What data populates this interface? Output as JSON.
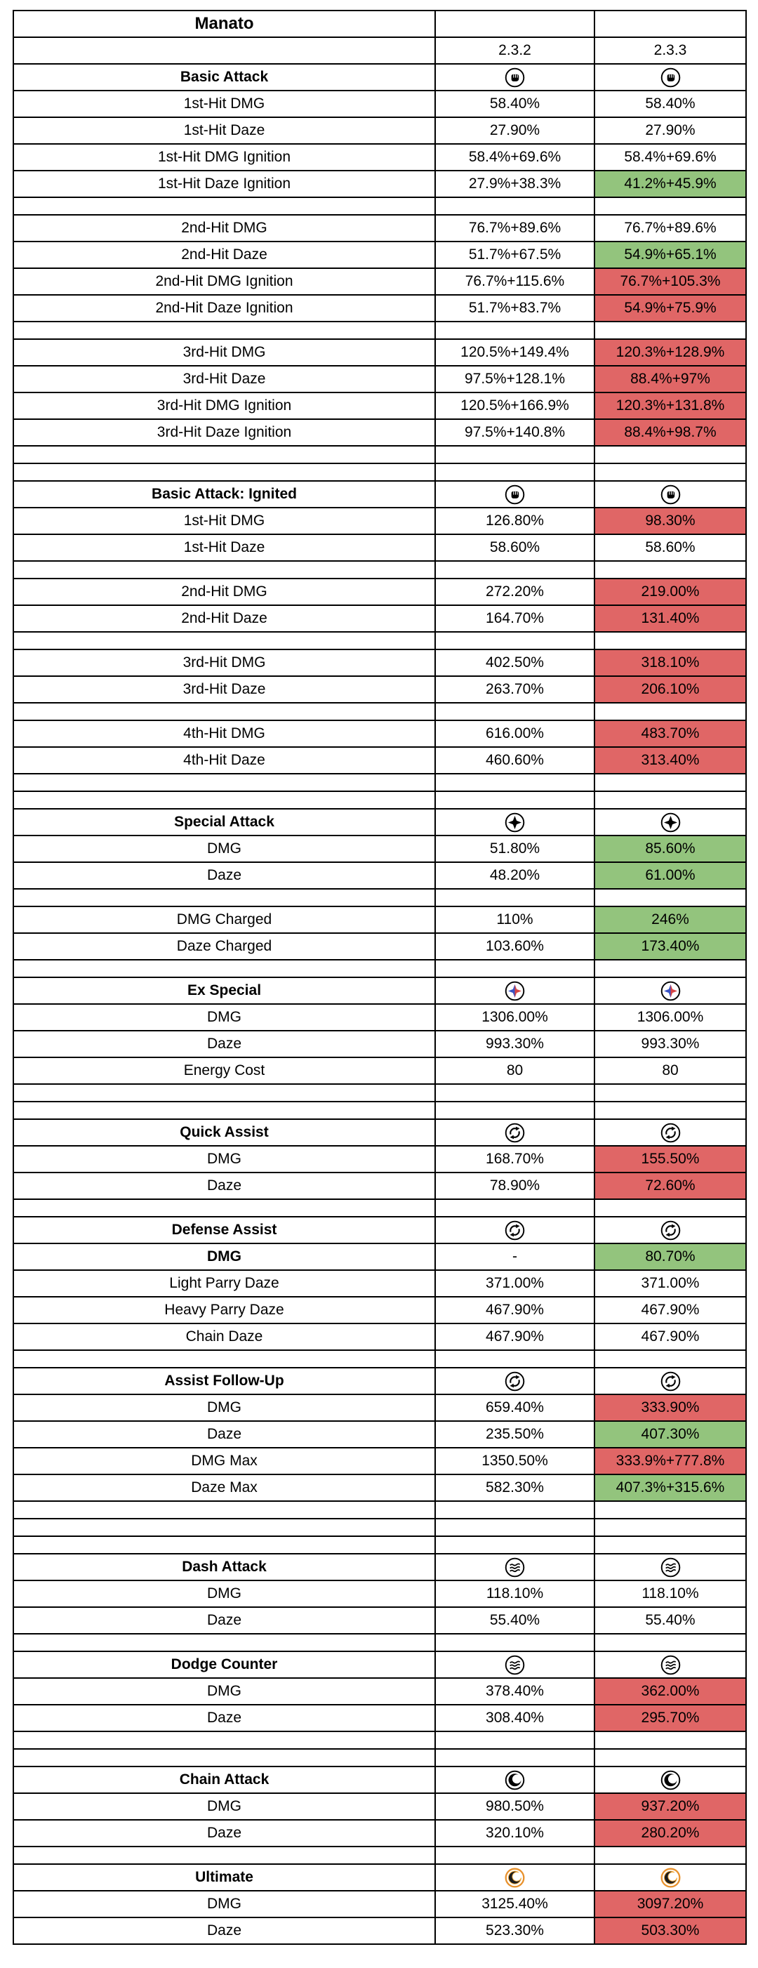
{
  "chart_data": {
    "type": "table",
    "title": "Manato",
    "columns": [
      "",
      "2.3.2",
      "2.3.3"
    ],
    "highlight_colors": {
      "buff": "#93c47d",
      "nerf": "#e06666"
    },
    "rows": [
      {
        "type": "title",
        "label": "Manato"
      },
      {
        "type": "versions",
        "old": "2.3.2",
        "new": "2.3.3"
      },
      {
        "type": "section",
        "label": "Basic Attack",
        "icon": "basic-attack-icon"
      },
      {
        "type": "stat",
        "label": "1st-Hit DMG",
        "old": "58.40%",
        "new": "58.40%",
        "change": "none"
      },
      {
        "type": "stat",
        "label": "1st-Hit Daze",
        "old": "27.90%",
        "new": "27.90%",
        "change": "none"
      },
      {
        "type": "stat",
        "label": "1st-Hit DMG Ignition",
        "old": "58.4%+69.6%",
        "new": "58.4%+69.6%",
        "change": "none"
      },
      {
        "type": "stat",
        "label": "1st-Hit Daze Ignition",
        "old": "27.9%+38.3%",
        "new": "41.2%+45.9%",
        "change": "buff"
      },
      {
        "type": "spacer"
      },
      {
        "type": "stat",
        "label": "2nd-Hit DMG",
        "old": "76.7%+89.6%",
        "new": "76.7%+89.6%",
        "change": "none"
      },
      {
        "type": "stat",
        "label": "2nd-Hit Daze",
        "old": "51.7%+67.5%",
        "new": "54.9%+65.1%",
        "change": "buff"
      },
      {
        "type": "stat",
        "label": "2nd-Hit DMG Ignition",
        "old": "76.7%+115.6%",
        "new": "76.7%+105.3%",
        "change": "nerf"
      },
      {
        "type": "stat",
        "label": "2nd-Hit Daze Ignition",
        "old": "51.7%+83.7%",
        "new": "54.9%+75.9%",
        "change": "nerf"
      },
      {
        "type": "spacer"
      },
      {
        "type": "stat",
        "label": "3rd-Hit DMG",
        "old": "120.5%+149.4%",
        "new": "120.3%+128.9%",
        "change": "nerf"
      },
      {
        "type": "stat",
        "label": "3rd-Hit Daze",
        "old": "97.5%+128.1%",
        "new": "88.4%+97%",
        "change": "nerf"
      },
      {
        "type": "stat",
        "label": "3rd-Hit DMG Ignition",
        "old": "120.5%+166.9%",
        "new": "120.3%+131.8%",
        "change": "nerf"
      },
      {
        "type": "stat",
        "label": "3rd-Hit Daze Ignition",
        "old": "97.5%+140.8%",
        "new": "88.4%+98.7%",
        "change": "nerf"
      },
      {
        "type": "spacer"
      },
      {
        "type": "spacer"
      },
      {
        "type": "section",
        "label": "Basic Attack: Ignited",
        "icon": "basic-attack-icon"
      },
      {
        "type": "stat",
        "label": "1st-Hit DMG",
        "old": "126.80%",
        "new": "98.30%",
        "change": "nerf"
      },
      {
        "type": "stat",
        "label": "1st-Hit Daze",
        "old": "58.60%",
        "new": "58.60%",
        "change": "none"
      },
      {
        "type": "spacer"
      },
      {
        "type": "stat",
        "label": "2nd-Hit DMG",
        "old": "272.20%",
        "new": "219.00%",
        "change": "nerf"
      },
      {
        "type": "stat",
        "label": "2nd-Hit Daze",
        "old": "164.70%",
        "new": "131.40%",
        "change": "nerf"
      },
      {
        "type": "spacer"
      },
      {
        "type": "stat",
        "label": "3rd-Hit DMG",
        "old": "402.50%",
        "new": "318.10%",
        "change": "nerf"
      },
      {
        "type": "stat",
        "label": "3rd-Hit Daze",
        "old": "263.70%",
        "new": "206.10%",
        "change": "nerf"
      },
      {
        "type": "spacer"
      },
      {
        "type": "stat",
        "label": "4th-Hit DMG",
        "old": "616.00%",
        "new": "483.70%",
        "change": "nerf"
      },
      {
        "type": "stat",
        "label": "4th-Hit Daze",
        "old": "460.60%",
        "new": "313.40%",
        "change": "nerf"
      },
      {
        "type": "spacer"
      },
      {
        "type": "spacer"
      },
      {
        "type": "section",
        "label": "Special Attack",
        "icon": "special-attack-icon"
      },
      {
        "type": "stat",
        "label": "DMG",
        "old": "51.80%",
        "new": "85.60%",
        "change": "buff"
      },
      {
        "type": "stat",
        "label": "Daze",
        "old": "48.20%",
        "new": "61.00%",
        "change": "buff"
      },
      {
        "type": "spacer"
      },
      {
        "type": "stat",
        "label": "DMG Charged",
        "old": "110%",
        "new": "246%",
        "change": "buff"
      },
      {
        "type": "stat",
        "label": "Daze Charged",
        "old": "103.60%",
        "new": "173.40%",
        "change": "buff"
      },
      {
        "type": "spacer"
      },
      {
        "type": "section",
        "label": "Ex Special",
        "icon": "ex-special-icon"
      },
      {
        "type": "stat",
        "label": "DMG",
        "old": "1306.00%",
        "new": "1306.00%",
        "change": "none"
      },
      {
        "type": "stat",
        "label": "Daze",
        "old": "993.30%",
        "new": "993.30%",
        "change": "none"
      },
      {
        "type": "stat",
        "label": "Energy Cost",
        "old": "80",
        "new": "80",
        "change": "none"
      },
      {
        "type": "spacer"
      },
      {
        "type": "spacer"
      },
      {
        "type": "section",
        "label": "Quick Assist",
        "icon": "quick-assist-icon"
      },
      {
        "type": "stat",
        "label": "DMG",
        "old": "168.70%",
        "new": "155.50%",
        "change": "nerf"
      },
      {
        "type": "stat",
        "label": "Daze",
        "old": "78.90%",
        "new": "72.60%",
        "change": "nerf"
      },
      {
        "type": "spacer"
      },
      {
        "type": "section",
        "label": "Defense Assist",
        "icon": "defense-assist-icon"
      },
      {
        "type": "stat",
        "label": "DMG",
        "old": "-",
        "new": "80.70%",
        "change": "buff",
        "bold": true
      },
      {
        "type": "stat",
        "label": "Light Parry Daze",
        "old": "371.00%",
        "new": "371.00%",
        "change": "none"
      },
      {
        "type": "stat",
        "label": "Heavy Parry Daze",
        "old": "467.90%",
        "new": "467.90%",
        "change": "none"
      },
      {
        "type": "stat",
        "label": "Chain Daze",
        "old": "467.90%",
        "new": "467.90%",
        "change": "none"
      },
      {
        "type": "spacer"
      },
      {
        "type": "section",
        "label": "Assist Follow-Up",
        "icon": "assist-follow-up-icon"
      },
      {
        "type": "stat",
        "label": "DMG",
        "old": "659.40%",
        "new": "333.90%",
        "change": "nerf"
      },
      {
        "type": "stat",
        "label": "Daze",
        "old": "235.50%",
        "new": "407.30%",
        "change": "buff"
      },
      {
        "type": "stat",
        "label": "DMG Max",
        "old": "1350.50%",
        "new": "333.9%+777.8%",
        "change": "nerf"
      },
      {
        "type": "stat",
        "label": "Daze Max",
        "old": "582.30%",
        "new": "407.3%+315.6%",
        "change": "buff"
      },
      {
        "type": "spacer"
      },
      {
        "type": "spacer"
      },
      {
        "type": "spacer"
      },
      {
        "type": "section",
        "label": "Dash Attack",
        "icon": "dash-attack-icon"
      },
      {
        "type": "stat",
        "label": "DMG",
        "old": "118.10%",
        "new": "118.10%",
        "change": "none"
      },
      {
        "type": "stat",
        "label": "Daze",
        "old": "55.40%",
        "new": "55.40%",
        "change": "none"
      },
      {
        "type": "spacer"
      },
      {
        "type": "section",
        "label": "Dodge Counter",
        "icon": "dodge-counter-icon"
      },
      {
        "type": "stat",
        "label": "DMG",
        "old": "378.40%",
        "new": "362.00%",
        "change": "nerf"
      },
      {
        "type": "stat",
        "label": "Daze",
        "old": "308.40%",
        "new": "295.70%",
        "change": "nerf"
      },
      {
        "type": "spacer"
      },
      {
        "type": "spacer"
      },
      {
        "type": "section",
        "label": "Chain Attack",
        "icon": "chain-attack-icon"
      },
      {
        "type": "stat",
        "label": "DMG",
        "old": "980.50%",
        "new": "937.20%",
        "change": "nerf"
      },
      {
        "type": "stat",
        "label": "Daze",
        "old": "320.10%",
        "new": "280.20%",
        "change": "nerf"
      },
      {
        "type": "spacer"
      },
      {
        "type": "section",
        "label": "Ultimate",
        "icon": "ultimate-icon"
      },
      {
        "type": "stat",
        "label": "DMG",
        "old": "3125.40%",
        "new": "3097.20%",
        "change": "nerf"
      },
      {
        "type": "stat",
        "label": "Daze",
        "old": "523.30%",
        "new": "503.30%",
        "change": "nerf"
      }
    ]
  }
}
